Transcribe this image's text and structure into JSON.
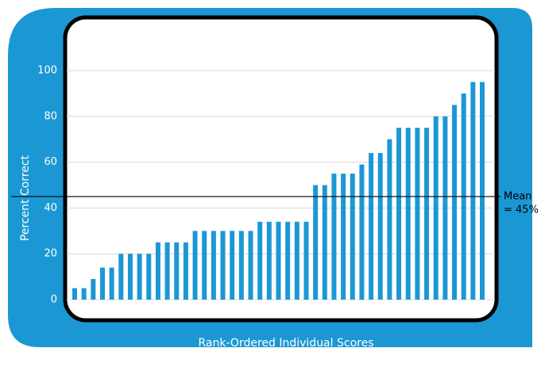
{
  "chart_data": {
    "type": "bar",
    "y_label": "Percent Correct",
    "x_label": "Rank-Ordered Individual Scores",
    "values": [
      5,
      5,
      9,
      14,
      14,
      20,
      20,
      20,
      20,
      25,
      25,
      25,
      25,
      30,
      30,
      30,
      30,
      30,
      30,
      30,
      34,
      34,
      34,
      34,
      34,
      34,
      50,
      50,
      55,
      55,
      55,
      59,
      64,
      64,
      70,
      75,
      75,
      75,
      75,
      80,
      80,
      85,
      90,
      95,
      95
    ],
    "color": "#1b98d4",
    "ylim": [
      0,
      100
    ],
    "yticks": [
      0,
      20,
      40,
      60,
      80,
      100
    ],
    "grid": true,
    "mean": {
      "value": 45,
      "label_lines": [
        "Mean",
        "= 45%"
      ]
    }
  }
}
